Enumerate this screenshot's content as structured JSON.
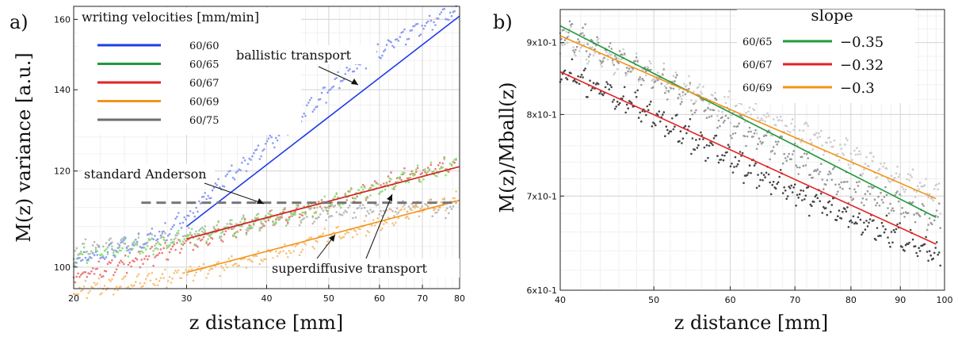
{
  "chart_data": [
    {
      "panel_label": "a)",
      "type": "scatter",
      "xscale": "log",
      "yscale": "log",
      "xlim": [
        20,
        80
      ],
      "ylim": [
        96,
        164
      ],
      "xticks": [
        20,
        30,
        40,
        50,
        60,
        70,
        80
      ],
      "yticks": [
        100,
        120,
        140,
        160
      ],
      "xlabel": "z distance [mm]",
      "ylabel": "M(z) variance [a.u.]",
      "grid": true,
      "legend": {
        "title": "writing velocities [mm/min]",
        "placement": "top-left",
        "entries": [
          {
            "label": "60/60",
            "color": "#1f3be8"
          },
          {
            "label": "60/65",
            "color": "#1f9a3c"
          },
          {
            "label": "60/67",
            "color": "#e32222"
          },
          {
            "label": "60/69",
            "color": "#f39318"
          },
          {
            "label": "60/75",
            "color": "#6e6e6e"
          }
        ]
      },
      "series": [
        {
          "name": "60/60",
          "color": "#1f3be8",
          "scatter_color": "#8d9cf2",
          "points": [
            [
              20,
              101
            ],
            [
              22,
              102.5
            ],
            [
              24,
              104
            ],
            [
              26,
              105.5
            ],
            [
              28,
              107.5
            ],
            [
              30,
              110
            ],
            [
              32,
              114
            ],
            [
              35,
              119
            ],
            [
              40,
              126
            ],
            [
              45,
              133
            ],
            [
              50,
              140
            ],
            [
              55,
              147
            ],
            [
              60,
              151
            ],
            [
              65,
              155
            ],
            [
              70,
              158
            ],
            [
              75,
              161
            ],
            [
              79,
              163
            ]
          ],
          "fit": [
            [
              30,
              108
            ],
            [
              80,
              161
            ]
          ]
        },
        {
          "name": "60/65",
          "color": "#1f9a3c",
          "scatter_color": "#8ce27a",
          "points": [
            [
              20,
              102
            ],
            [
              22,
              103
            ],
            [
              25,
              104
            ],
            [
              28,
              105
            ],
            [
              30,
              106
            ],
            [
              33,
              107
            ],
            [
              36,
              108
            ],
            [
              40,
              109.5
            ],
            [
              45,
              111
            ],
            [
              50,
              113
            ],
            [
              55,
              115
            ],
            [
              60,
              116.5
            ],
            [
              65,
              118
            ],
            [
              70,
              119.5
            ],
            [
              75,
              120.5
            ],
            [
              79,
              122
            ]
          ],
          "fit": [
            [
              30,
              105.5
            ],
            [
              80,
              121
            ]
          ]
        },
        {
          "name": "60/67",
          "color": "#e32222",
          "scatter_color": "#ec7a7a",
          "points": [
            [
              20,
              98.5
            ],
            [
              22,
              99.5
            ],
            [
              24,
              100.5
            ],
            [
              26,
              102
            ],
            [
              28,
              103
            ],
            [
              30,
              104.5
            ],
            [
              33,
              106
            ],
            [
              36,
              107.5
            ],
            [
              40,
              109.5
            ],
            [
              45,
              111.5
            ],
            [
              50,
              113
            ],
            [
              55,
              115
            ],
            [
              60,
              117
            ],
            [
              65,
              118.5
            ],
            [
              70,
              120
            ],
            [
              75,
              121
            ],
            [
              79,
              121.5
            ]
          ],
          "fit": [
            [
              30,
              105.5
            ],
            [
              80,
              121
            ]
          ]
        },
        {
          "name": "60/69",
          "color": "#f39318",
          "scatter_color": "#f7c27a",
          "points": [
            [
              20,
              96
            ],
            [
              22,
              96.5
            ],
            [
              24,
              97
            ],
            [
              26,
              97.5
            ],
            [
              28,
              98
            ],
            [
              30,
              99
            ],
            [
              33,
              100
            ],
            [
              36,
              101
            ],
            [
              40,
              102.5
            ],
            [
              45,
              104
            ],
            [
              50,
              106
            ],
            [
              55,
              107.5
            ],
            [
              60,
              109
            ],
            [
              65,
              110.5
            ],
            [
              70,
              112
            ],
            [
              75,
              113
            ],
            [
              79,
              114
            ]
          ],
          "fit": [
            [
              30,
              99
            ],
            [
              80,
              113.5
            ]
          ]
        },
        {
          "name": "60/75",
          "color": "#6e6e6e",
          "scatter_color": "#b9b9b9",
          "points": [
            [
              20,
              103.5
            ],
            [
              22,
              104
            ],
            [
              25,
              104.5
            ],
            [
              28,
              105.5
            ],
            [
              30,
              106.5
            ],
            [
              33,
              107.5
            ],
            [
              36,
              108.5
            ],
            [
              40,
              109.5
            ],
            [
              45,
              110.5
            ],
            [
              50,
              111
            ],
            [
              55,
              111.5
            ],
            [
              60,
              111.5
            ],
            [
              65,
              112
            ],
            [
              70,
              112.5
            ],
            [
              75,
              112
            ],
            [
              79,
              112
            ]
          ]
        },
        {
          "name": "standard Anderson",
          "color": "#777777",
          "dashed": true,
          "fit": [
            [
              25.5,
              113
            ],
            [
              79,
              113
            ]
          ]
        }
      ],
      "annotations": [
        "ballistic transport",
        "standard Anderson",
        "superdiffusive transport"
      ]
    },
    {
      "panel_label": "b)",
      "type": "scatter",
      "xscale": "log",
      "yscale": "log",
      "xlim": [
        40,
        100
      ],
      "ylim": [
        0.6,
        0.95
      ],
      "xticks": [
        40,
        50,
        60,
        70,
        80,
        90,
        100
      ],
      "yticks": [
        0.6,
        0.7,
        0.8,
        0.9
      ],
      "ytick_labels": [
        "6x10-1",
        "7x10-1",
        "8x10-1",
        "9x10-1"
      ],
      "xlabel": "z distance [mm]",
      "ylabel": "M(z)/Mball(z)",
      "grid": true,
      "legend": {
        "title": "slope",
        "placement": "top-right",
        "entries": [
          {
            "label": "60/65",
            "value": "−0.35",
            "color": "#1f9a3c"
          },
          {
            "label": "60/67",
            "value": "−0.32",
            "color": "#e32222"
          },
          {
            "label": "60/69",
            "value": "−0.3",
            "color": "#f39318"
          }
        ]
      },
      "series": [
        {
          "name": "60/65",
          "color": "#1f9a3c",
          "scatter_color": "#9a9a9a",
          "points": [
            [
              40,
              0.92
            ],
            [
              45,
              0.885
            ],
            [
              50,
              0.85
            ],
            [
              55,
              0.82
            ],
            [
              60,
              0.79
            ],
            [
              65,
              0.765
            ],
            [
              70,
              0.745
            ],
            [
              75,
              0.725
            ],
            [
              80,
              0.71
            ],
            [
              85,
              0.7
            ],
            [
              90,
              0.69
            ],
            [
              95,
              0.68
            ],
            [
              99,
              0.675
            ]
          ],
          "fit": [
            [
              40,
              0.925
            ],
            [
              98,
              0.676
            ]
          ]
        },
        {
          "name": "60/67",
          "color": "#e32222",
          "scatter_color": "#444444",
          "points": [
            [
              40,
              0.86
            ],
            [
              45,
              0.83
            ],
            [
              50,
              0.8
            ],
            [
              55,
              0.77
            ],
            [
              60,
              0.745
            ],
            [
              65,
              0.725
            ],
            [
              70,
              0.705
            ],
            [
              75,
              0.69
            ],
            [
              80,
              0.675
            ],
            [
              85,
              0.665
            ],
            [
              90,
              0.655
            ],
            [
              95,
              0.645
            ],
            [
              99,
              0.635
            ]
          ],
          "fit": [
            [
              40,
              0.858
            ],
            [
              98,
              0.647
            ]
          ]
        },
        {
          "name": "60/69",
          "color": "#f39318",
          "scatter_color": "#cccccc",
          "points": [
            [
              40,
              0.91
            ],
            [
              45,
              0.88
            ],
            [
              50,
              0.855
            ],
            [
              55,
              0.83
            ],
            [
              60,
              0.81
            ],
            [
              65,
              0.795
            ],
            [
              70,
              0.78
            ],
            [
              75,
              0.765
            ],
            [
              80,
              0.75
            ],
            [
              85,
              0.735
            ],
            [
              90,
              0.72
            ],
            [
              95,
              0.71
            ],
            [
              99,
              0.7
            ]
          ],
          "fit": [
            [
              40,
              0.91
            ],
            [
              98,
              0.697
            ]
          ]
        }
      ]
    }
  ]
}
